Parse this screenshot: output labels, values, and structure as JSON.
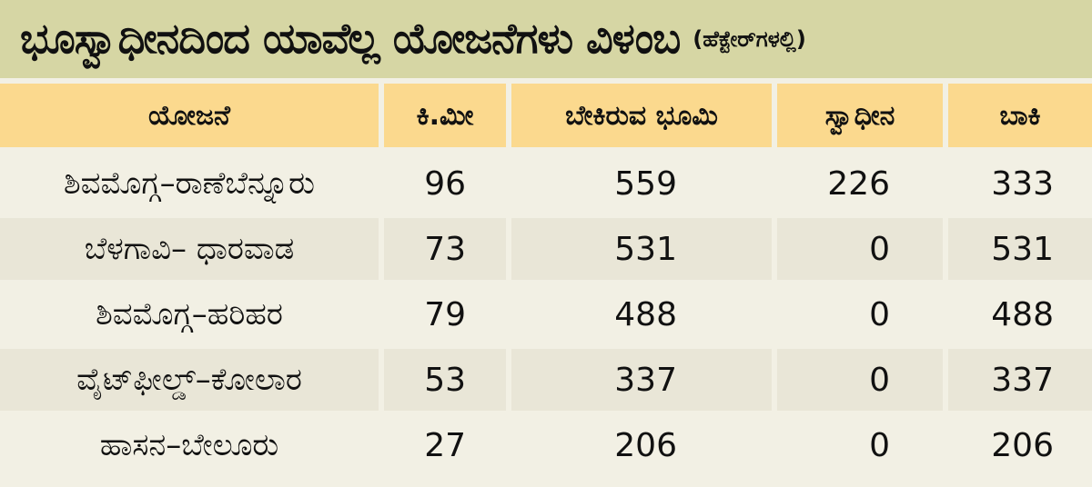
{
  "title": {
    "main": "ಭೂಸ್ವಾಧೀನದಿಂದ ಯಾವೆಲ್ಲ ಯೋಜನೆಗಳು ವಿಳಂಬ",
    "unit": "(ಹೆಕ್ಟೇರ್‌ಗಳಲ್ಲಿ)"
  },
  "table": {
    "headers": [
      "ಯೋಜನೆ",
      "ಕಿ.ಮೀ",
      "ಬೇಕಿರುವ ಭೂಮಿ",
      "ಸ್ವಾಧೀನ",
      "ಬಾಕಿ"
    ],
    "rows": [
      [
        "ಶಿವಮೊಗ್ಗ–ರಾಣೆಬೆನ್ನೂರು",
        "96",
        "559",
        "226",
        "333"
      ],
      [
        "ಬೆಳಗಾವಿ– ಧಾರವಾಡ",
        "73",
        "531",
        "0",
        "531"
      ],
      [
        "ಶಿವಮೊಗ್ಗ–ಹರಿಹರ",
        "79",
        "488",
        "0",
        "488"
      ],
      [
        "ವೈಟ್‌ಫೀಲ್ಡ್–ಕೋಲಾರ",
        "53",
        "337",
        "0",
        "337"
      ],
      [
        "ಹಾಸನ–ಬೇಲೂರು",
        "27",
        "206",
        "0",
        "206"
      ]
    ]
  }
}
